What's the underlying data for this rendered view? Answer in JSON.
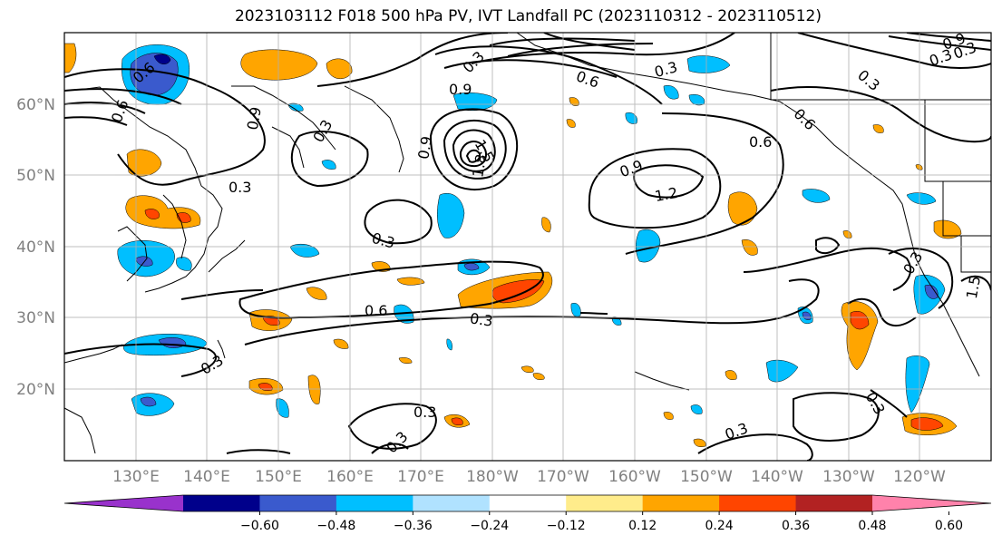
{
  "title": "2023103112 F018 500 hPa PV, IVT Landfall PC (2023110312 - 2023110512)",
  "lat_labels": [
    "60°N",
    "50°N",
    "40°N",
    "30°N",
    "20°N"
  ],
  "lon_labels": [
    "130°E",
    "140°E",
    "150°E",
    "160°E",
    "170°E",
    "180°W",
    "170°W",
    "160°W",
    "150°W",
    "140°W",
    "130°W",
    "120°W"
  ],
  "colorbar": {
    "colors": [
      "#9932cc",
      "#00008b",
      "#3a5acd",
      "#00bfff",
      "#b0e2ff",
      "#ffffff",
      "#ffec8b",
      "#ffa500",
      "#ff4500",
      "#b22222",
      "#ff82ab"
    ],
    "tick_labels": [
      "−0.60",
      "−0.48",
      "−0.36",
      "−0.24",
      "−0.12",
      "0.12",
      "0.24",
      "0.36",
      "0.48",
      "0.60"
    ]
  },
  "contour_labels": [
    "0.6",
    "0.9",
    "1.2",
    "0.3",
    "0.6",
    "0.9",
    "1.2",
    "1.5",
    "1.8",
    "0.9",
    "0.3",
    "0.6",
    "0.9",
    "1.2",
    "0.6",
    "0.3",
    "0.3",
    "0.6",
    "0.3",
    "0.3",
    "0.3",
    "0.3",
    "0.3",
    "0.3",
    "0.3",
    "0.3",
    "1.5",
    "0.3",
    "0.9",
    "0.3",
    "0.9",
    "0.3",
    "1.2",
    "0.6",
    "0.9",
    "0.3",
    "0.6"
  ]
}
